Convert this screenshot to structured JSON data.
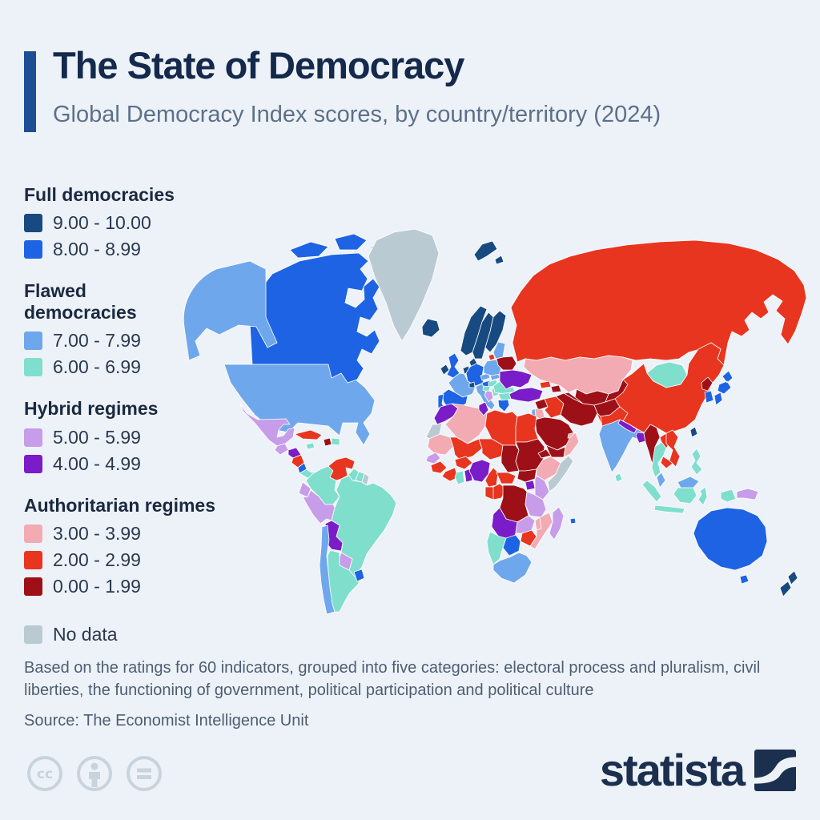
{
  "header": {
    "title": "The State of Democracy",
    "subtitle": "Global Democracy Index scores, by country/territory (2024)",
    "accent_color": "#1d4d92"
  },
  "legend": {
    "groups": [
      {
        "label": "Full democracies",
        "items": [
          {
            "range": "9.00 - 10.00",
            "bin": "9-10"
          },
          {
            "range": "8.00 - 8.99",
            "bin": "8-9"
          }
        ]
      },
      {
        "label": "Flawed\ndemocracies",
        "items": [
          {
            "range": "7.00 - 7.99",
            "bin": "7-8"
          },
          {
            "range": "6.00 - 6.99",
            "bin": "6-7"
          }
        ]
      },
      {
        "label": "Hybrid regimes",
        "items": [
          {
            "range": "5.00 - 5.99",
            "bin": "5-6"
          },
          {
            "range": "4.00 - 4.99",
            "bin": "4-5"
          }
        ]
      },
      {
        "label": "Authoritarian regimes",
        "items": [
          {
            "range": "3.00 - 3.99",
            "bin": "3-4"
          },
          {
            "range": "2.00 - 2.99",
            "bin": "2-3"
          },
          {
            "range": "0.00 - 1.99",
            "bin": "0-2"
          }
        ]
      }
    ],
    "no_data": {
      "label": "No data",
      "bin": "nodata"
    }
  },
  "footer": {
    "note": "Based on the ratings for 60 indicators, grouped into five categories: electoral process and pluralism, civil liberties, the functioning of government, political participation and political culture",
    "source": "Source: The Economist Intelligence Unit"
  },
  "branding": {
    "logo_text": "statista",
    "license_icons": [
      "cc-icon",
      "attribution-icon",
      "equals-icon"
    ]
  },
  "chart_data": {
    "type": "heatmap",
    "title": "The State of Democracy",
    "subtitle": "Global Democracy Index scores, by country/territory (2024)",
    "legend_position": "left",
    "bins": [
      {
        "id": "9-10",
        "range": "9.00 - 10.00",
        "group": "Full democracies",
        "color": "#164a80"
      },
      {
        "id": "8-9",
        "range": "8.00 - 8.99",
        "group": "Full democracies",
        "color": "#1d63e3"
      },
      {
        "id": "7-8",
        "range": "7.00 - 7.99",
        "group": "Flawed democracies",
        "color": "#6ea7eb"
      },
      {
        "id": "6-7",
        "range": "6.00 - 6.99",
        "group": "Flawed democracies",
        "color": "#80decd"
      },
      {
        "id": "5-6",
        "range": "5.00 - 5.99",
        "group": "Hybrid regimes",
        "color": "#c79ce9"
      },
      {
        "id": "4-5",
        "range": "4.00 - 4.99",
        "group": "Hybrid regimes",
        "color": "#7a1cc7"
      },
      {
        "id": "3-4",
        "range": "3.00 - 3.99",
        "group": "Authoritarian regimes",
        "color": "#f2abb3"
      },
      {
        "id": "2-3",
        "range": "2.00 - 2.99",
        "group": "Authoritarian regimes",
        "color": "#e7351f"
      },
      {
        "id": "0-2",
        "range": "0.00 - 1.99",
        "group": "Authoritarian regimes",
        "color": "#9d1018"
      },
      {
        "id": "nodata",
        "range": "No data",
        "group": "No data",
        "color": "#b9cad2"
      }
    ],
    "countries": {
      "alaska": "7-8",
      "canada": "8-9",
      "arctic-islands": "8-9",
      "greenland": "nodata",
      "iceland": "9-10",
      "svalbard": "9-10",
      "usa": "7-8",
      "mexico": "5-6",
      "guatemala": "5-6",
      "honduras": "4-5",
      "nicaragua": "2-3",
      "costa-rica": "8-9",
      "panama": "6-7",
      "cuba": "2-3",
      "jamaica": "6-7",
      "haiti": "0-2",
      "dominican-republic": "6-7",
      "colombia": "6-7",
      "venezuela": "2-3",
      "guyana": "6-7",
      "suriname": "6-7",
      "french-guiana": "nodata",
      "ecuador": "5-6",
      "peru": "5-6",
      "brazil": "6-7",
      "bolivia": "4-5",
      "paraguay": "5-6",
      "chile": "7-8",
      "argentina": "6-7",
      "uruguay": "8-9",
      "norway": "9-10",
      "sweden": "9-10",
      "finland": "9-10",
      "denmark": "9-10",
      "uk": "8-9",
      "ireland": "9-10",
      "benelux": "9-10",
      "germany": "8-9",
      "france": "7-8",
      "spain": "8-9",
      "portugal": "8-9",
      "italy": "7-8",
      "switzerland": "9-10",
      "austria": "8-9",
      "czechia": "7-8",
      "slovakia": "7-8",
      "poland": "7-8",
      "hungary": "6-7",
      "croatia": "6-7",
      "serbia": "6-7",
      "bosnia-albania": "5-6",
      "greece": "8-9",
      "romania": "6-7",
      "bulgaria": "6-7",
      "moldova": "6-7",
      "baltics": "7-8",
      "kaliningrad": "2-3",
      "belarus": "0-2",
      "ukraine": "4-5",
      "crimea": "nodata",
      "russia": "2-3",
      "kazakhstan": "3-4",
      "uzbekistan": "0-2",
      "turkmenistan": "0-2",
      "kyrgyzstan-tajikistan": "0-2",
      "georgia": "2-3",
      "azerbaijan": "0-2",
      "turkey": "4-5",
      "syria": "0-2",
      "israel": "7-8",
      "jordan": "3-4",
      "iraq": "2-3",
      "iran": "0-2",
      "saudi-arabia": "0-2",
      "yemen": "0-2",
      "oman": "3-4",
      "uae": "3-4",
      "afghanistan": "0-2",
      "pakistan": "2-3",
      "india": "7-8",
      "nepal": "4-5",
      "bangladesh": "4-5",
      "sri-lanka": "6-7",
      "myanmar": "0-2",
      "thailand": "6-7",
      "laos": "2-3",
      "vietnam": "2-3",
      "cambodia": "2-3",
      "malaysia": "7-8",
      "borneo-malaysia": "7-8",
      "indonesia": "6-7",
      "philippines": "6-7",
      "china": "2-3",
      "mongolia": "6-7",
      "north-korea": "0-2",
      "south-korea": "8-9",
      "japan": "8-9",
      "taiwan": "9-10",
      "papua-new-guinea": "5-6",
      "australia": "8-9",
      "new-zealand": "9-10",
      "mauritius": "8-9",
      "morocco": "4-5",
      "western-sahara": "nodata",
      "algeria": "3-4",
      "tunisia": "4-5",
      "libya": "2-3",
      "egypt": "2-3",
      "mauritania": "3-4",
      "mali": "2-3",
      "niger": "2-3",
      "chad": "0-2",
      "sudan": "0-2",
      "eritrea": "0-2",
      "ethiopia": "3-4",
      "somalia": "nodata",
      "senegal": "5-6",
      "guinea": "2-3",
      "ivory-coast": "2-3",
      "ghana": "6-7",
      "togo-benin": "4-5",
      "burkina-faso": "2-3",
      "nigeria": "4-5",
      "cameroon": "2-3",
      "central-african-republic": "2-3",
      "south-sudan": "0-2",
      "uganda": "4-5",
      "kenya": "5-6",
      "gabon": "2-3",
      "congo": "2-3",
      "drc": "0-2",
      "tanzania": "5-6",
      "angola": "4-5",
      "zambia": "5-6",
      "malawi": "3-4",
      "mozambique": "3-4",
      "zimbabwe": "2-3",
      "botswana": "8-9",
      "namibia": "6-7",
      "south-africa": "7-8",
      "madagascar": "5-6"
    }
  }
}
